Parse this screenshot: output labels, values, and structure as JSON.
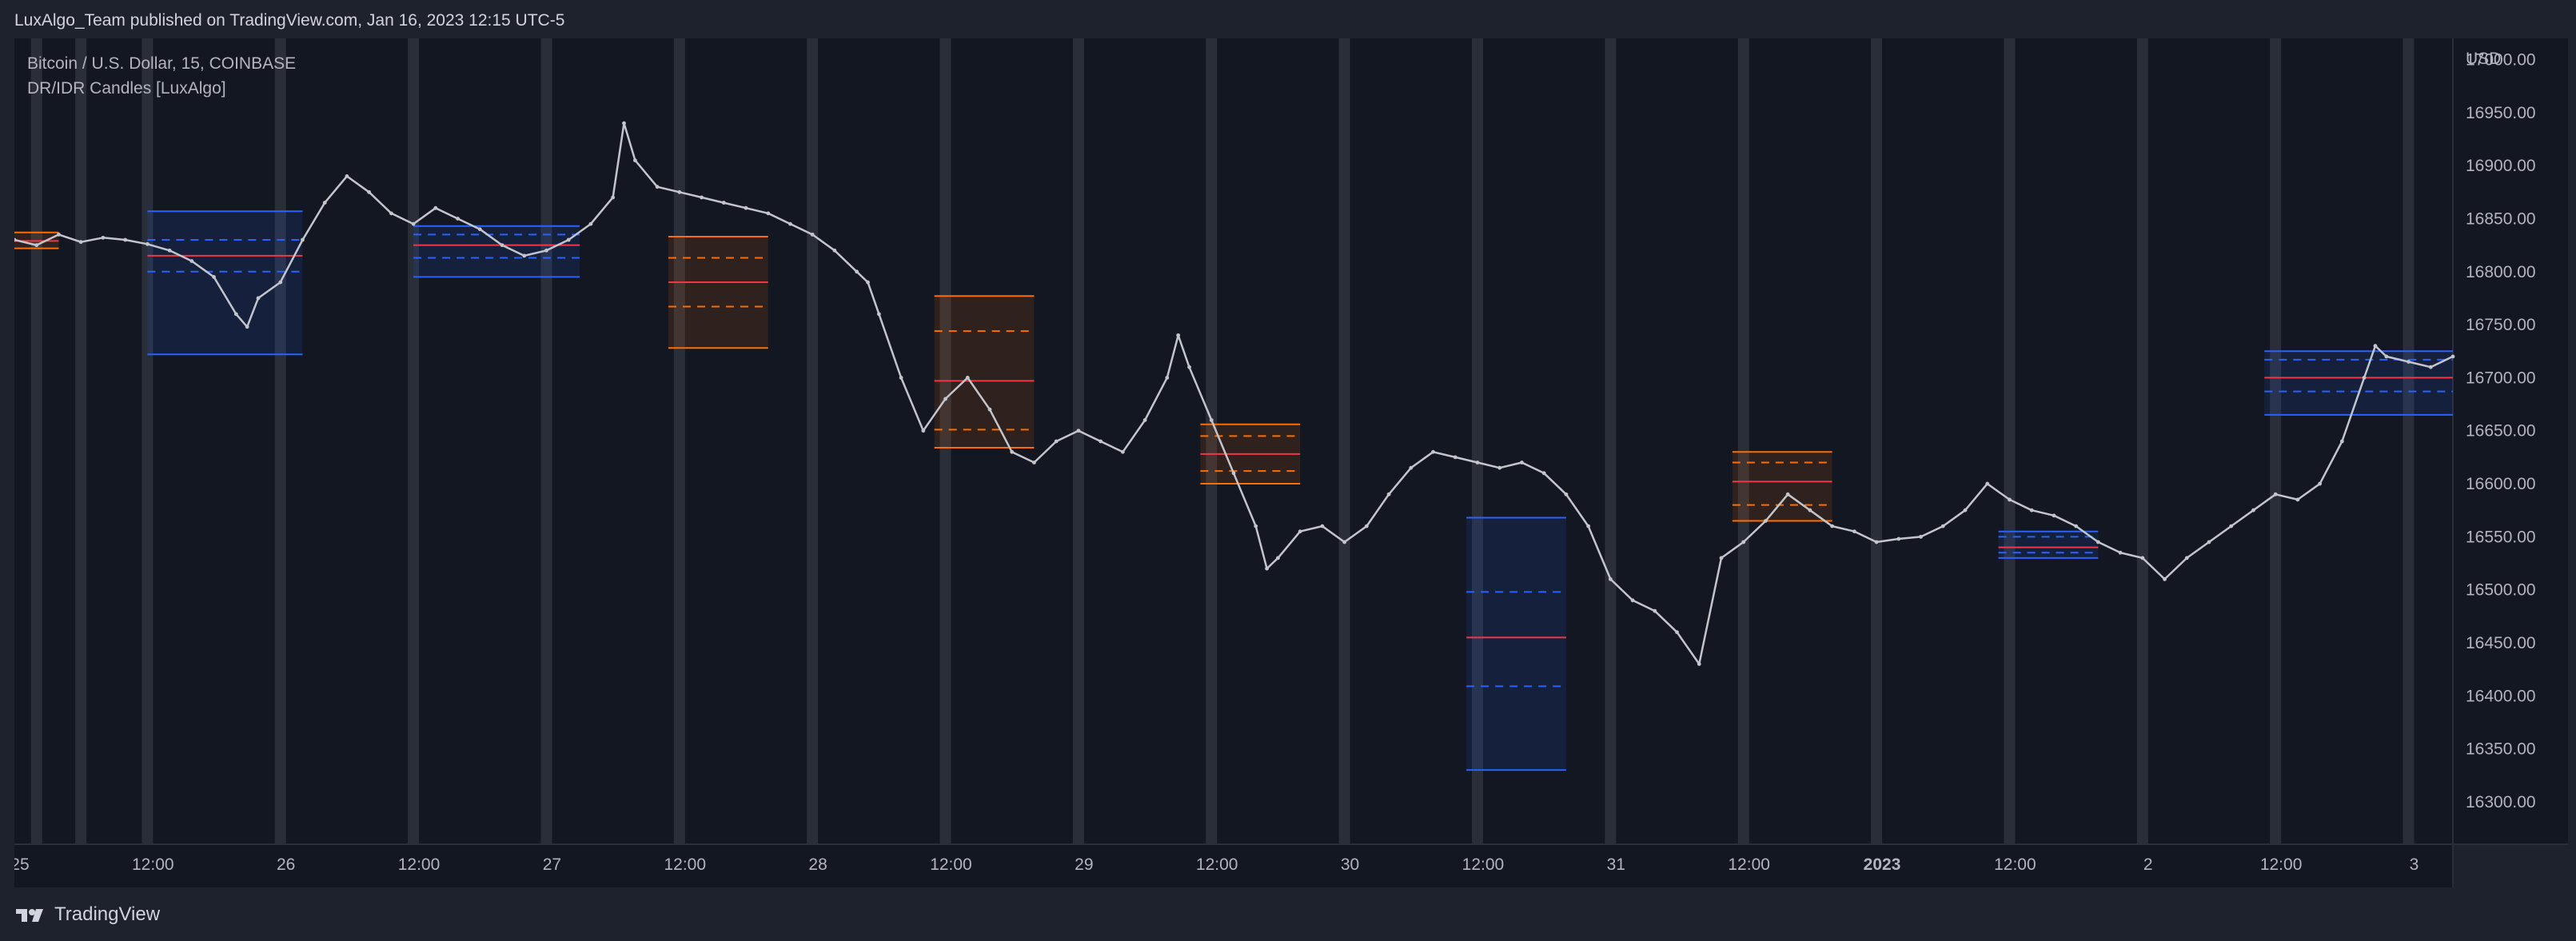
{
  "header": {
    "published": "LuxAlgo_Team published on TradingView.com, Jan 16, 2023 12:15 UTC-5"
  },
  "legend": {
    "symbol": "Bitcoin / U.S. Dollar, 15, COINBASE",
    "indicator": "DR/IDR Candles [LuxAlgo]"
  },
  "footer": {
    "brand": "TradingView",
    "logo_icon": "tradingview-logo-icon"
  },
  "colors": {
    "background": "#131722",
    "panel": "#1e222d",
    "session_band": "#2a2e39",
    "price_line": "#c3c5cc",
    "bullish_box": "#2962ff",
    "bearish_box": "#ff6d00",
    "midline_red": "#f23645",
    "text": "#b2b5be"
  },
  "chart_data": {
    "type": "line",
    "currency": "USD",
    "x_ticks": [
      "25",
      "12:00",
      "26",
      "12:00",
      "27",
      "12:00",
      "28",
      "12:00",
      "29",
      "12:00",
      "30",
      "12:00",
      "31",
      "12:00",
      "2023",
      "12:00",
      "2",
      "12:00",
      "3"
    ],
    "y_ticks": [
      17000,
      16950,
      16900,
      16850,
      16800,
      16750,
      16700,
      16650,
      16600,
      16550,
      16500,
      16450,
      16400,
      16350,
      16300
    ],
    "ylim": [
      16260,
      17020
    ],
    "x_range_hours": [
      -10,
      210
    ],
    "series": [
      {
        "values": [
          [
            -10,
            16830
          ],
          [
            -8,
            16825
          ],
          [
            -6,
            16835
          ],
          [
            -4,
            16828
          ],
          [
            -2,
            16832
          ],
          [
            0,
            16830
          ],
          [
            2,
            16826
          ],
          [
            4,
            16820
          ],
          [
            6,
            16810
          ],
          [
            8,
            16795
          ],
          [
            10,
            16760
          ],
          [
            11,
            16748
          ],
          [
            12,
            16775
          ],
          [
            14,
            16790
          ],
          [
            16,
            16830
          ],
          [
            18,
            16865
          ],
          [
            20,
            16890
          ],
          [
            22,
            16875
          ],
          [
            24,
            16855
          ],
          [
            26,
            16845
          ],
          [
            28,
            16860
          ],
          [
            30,
            16850
          ],
          [
            32,
            16840
          ],
          [
            34,
            16825
          ],
          [
            36,
            16815
          ],
          [
            38,
            16820
          ],
          [
            40,
            16830
          ],
          [
            42,
            16845
          ],
          [
            44,
            16870
          ],
          [
            45,
            16940
          ],
          [
            46,
            16905
          ],
          [
            48,
            16880
          ],
          [
            50,
            16875
          ],
          [
            52,
            16870
          ],
          [
            54,
            16865
          ],
          [
            56,
            16860
          ],
          [
            58,
            16855
          ],
          [
            60,
            16845
          ],
          [
            62,
            16835
          ],
          [
            64,
            16820
          ],
          [
            66,
            16800
          ],
          [
            67,
            16790
          ],
          [
            68,
            16760
          ],
          [
            70,
            16700
          ],
          [
            72,
            16650
          ],
          [
            74,
            16680
          ],
          [
            76,
            16700
          ],
          [
            78,
            16670
          ],
          [
            80,
            16630
          ],
          [
            82,
            16620
          ],
          [
            84,
            16640
          ],
          [
            86,
            16650
          ],
          [
            88,
            16640
          ],
          [
            90,
            16630
          ],
          [
            92,
            16660
          ],
          [
            94,
            16700
          ],
          [
            95,
            16740
          ],
          [
            96,
            16710
          ],
          [
            98,
            16660
          ],
          [
            100,
            16610
          ],
          [
            102,
            16560
          ],
          [
            103,
            16520
          ],
          [
            104,
            16530
          ],
          [
            106,
            16555
          ],
          [
            108,
            16560
          ],
          [
            110,
            16545
          ],
          [
            112,
            16560
          ],
          [
            114,
            16590
          ],
          [
            116,
            16615
          ],
          [
            118,
            16630
          ],
          [
            120,
            16625
          ],
          [
            122,
            16620
          ],
          [
            124,
            16615
          ],
          [
            126,
            16620
          ],
          [
            128,
            16610
          ],
          [
            130,
            16590
          ],
          [
            132,
            16560
          ],
          [
            134,
            16510
          ],
          [
            136,
            16490
          ],
          [
            138,
            16480
          ],
          [
            140,
            16460
          ],
          [
            142,
            16430
          ],
          [
            144,
            16530
          ],
          [
            146,
            16545
          ],
          [
            148,
            16565
          ],
          [
            150,
            16590
          ],
          [
            152,
            16575
          ],
          [
            154,
            16560
          ],
          [
            156,
            16555
          ],
          [
            158,
            16545
          ],
          [
            160,
            16548
          ],
          [
            162,
            16550
          ],
          [
            164,
            16560
          ],
          [
            166,
            16575
          ],
          [
            168,
            16600
          ],
          [
            170,
            16585
          ],
          [
            172,
            16575
          ],
          [
            174,
            16570
          ],
          [
            176,
            16560
          ],
          [
            178,
            16545
          ],
          [
            180,
            16535
          ],
          [
            182,
            16530
          ],
          [
            184,
            16510
          ],
          [
            186,
            16530
          ],
          [
            188,
            16545
          ],
          [
            190,
            16560
          ],
          [
            192,
            16575
          ],
          [
            194,
            16590
          ],
          [
            196,
            16585
          ],
          [
            198,
            16600
          ],
          [
            200,
            16640
          ],
          [
            202,
            16700
          ],
          [
            203,
            16730
          ],
          [
            204,
            16720
          ],
          [
            206,
            16715
          ],
          [
            208,
            16710
          ],
          [
            210,
            16720
          ]
        ]
      }
    ],
    "dr_boxes": [
      {
        "x": [
          -10,
          -6
        ],
        "high": 16837,
        "low": 16822,
        "mid": 16829,
        "side": "bearish"
      },
      {
        "x": [
          2,
          16
        ],
        "high": 16857,
        "low": 16722,
        "mid": 16815,
        "dash_up": 16830,
        "dash_dn": 16800,
        "side": "bullish"
      },
      {
        "x": [
          26,
          41
        ],
        "high": 16843,
        "low": 16795,
        "mid": 16825,
        "dash_up": 16835,
        "dash_dn": 16813,
        "side": "bullish"
      },
      {
        "x": [
          49,
          58
        ],
        "high": 16833,
        "low": 16728,
        "mid": 16790,
        "dash_up": 16813,
        "dash_dn": 16767,
        "side": "bearish"
      },
      {
        "x": [
          73,
          82
        ],
        "high": 16777,
        "low": 16634,
        "mid": 16697,
        "dash_up": 16744,
        "dash_dn": 16651,
        "side": "bearish"
      },
      {
        "x": [
          97,
          106
        ],
        "high": 16656,
        "low": 16600,
        "mid": 16628,
        "dash_up": 16645,
        "dash_dn": 16612,
        "side": "bearish"
      },
      {
        "x": [
          121,
          130
        ],
        "high": 16568,
        "low": 16330,
        "mid": 16455,
        "dash_up": 16498,
        "dash_dn": 16409,
        "side": "bullish"
      },
      {
        "x": [
          145,
          154
        ],
        "high": 16630,
        "low": 16565,
        "mid": 16602,
        "dash_up": 16620,
        "dash_dn": 16580,
        "side": "bearish"
      },
      {
        "x": [
          169,
          178
        ],
        "high": 16555,
        "low": 16530,
        "mid": 16540,
        "dash_up": 16550,
        "dash_dn": 16535,
        "side": "bullish"
      },
      {
        "x": [
          193,
          210
        ],
        "high": 16725,
        "low": 16665,
        "mid": 16700,
        "dash_up": 16717,
        "dash_dn": 16687,
        "side": "bullish"
      }
    ],
    "session_bands_hours": [
      -8,
      -4,
      2,
      14,
      26,
      38,
      50,
      62,
      74,
      86,
      98,
      110,
      122,
      134,
      146,
      158,
      170,
      182,
      194,
      206
    ],
    "grid": false
  }
}
